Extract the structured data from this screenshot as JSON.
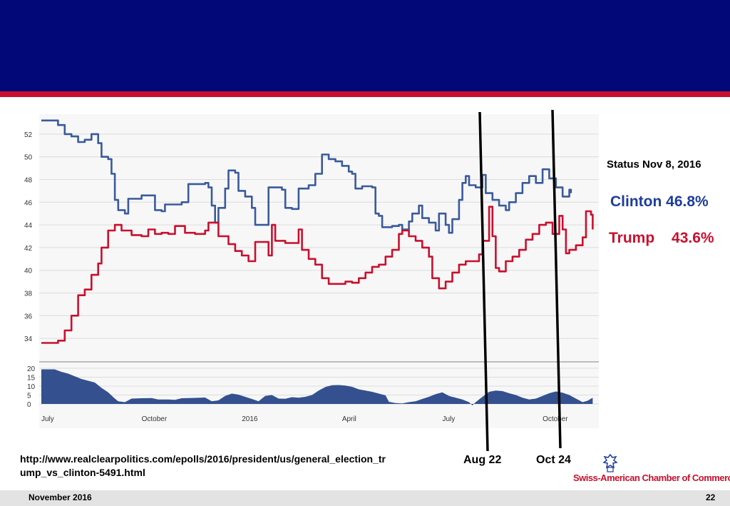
{
  "chart_data": {
    "type": "line",
    "ylim": [
      33,
      53
    ],
    "yticks": [
      34,
      36,
      38,
      40,
      42,
      44,
      46,
      48,
      50,
      52
    ],
    "spread_ylim": [
      0,
      20
    ],
    "spread_yticks": [
      0,
      5,
      10,
      15,
      20
    ],
    "xrange": [
      0,
      16.3
    ],
    "xticks": [
      {
        "x": 0,
        "label": "July"
      },
      {
        "x": 3.0,
        "label": "October"
      },
      {
        "x": 6.0,
        "label": "2016"
      },
      {
        "x": 9.0,
        "label": "April"
      },
      {
        "x": 12.0,
        "label": "July"
      },
      {
        "x": 15.0,
        "label": "October"
      }
    ],
    "series": [
      {
        "name": "Clinton",
        "color": "#3a5a9c",
        "values": [
          [
            0,
            53.2
          ],
          [
            0.4,
            53.2
          ],
          [
            0.5,
            52.8
          ],
          [
            0.7,
            52
          ],
          [
            0.9,
            51.8
          ],
          [
            1.1,
            51.3
          ],
          [
            1.3,
            51.5
          ],
          [
            1.5,
            52
          ],
          [
            1.7,
            51.2
          ],
          [
            1.8,
            50
          ],
          [
            2.0,
            49.8
          ],
          [
            2.1,
            48.5
          ],
          [
            2.2,
            46.2
          ],
          [
            2.3,
            45.3
          ],
          [
            2.5,
            45
          ],
          [
            2.6,
            46.3
          ],
          [
            2.9,
            46.3
          ],
          [
            3.0,
            46.6
          ],
          [
            3.3,
            46.6
          ],
          [
            3.4,
            45.3
          ],
          [
            3.6,
            45.2
          ],
          [
            3.7,
            45.8
          ],
          [
            4.1,
            45.8
          ],
          [
            4.2,
            46
          ],
          [
            4.4,
            47.6
          ],
          [
            4.9,
            47.7
          ],
          [
            5.0,
            47.3
          ],
          [
            5.1,
            45.7
          ],
          [
            5.2,
            44.2
          ],
          [
            5.3,
            45.5
          ],
          [
            5.5,
            47.2
          ],
          [
            5.6,
            48.8
          ],
          [
            5.8,
            48.6
          ],
          [
            5.9,
            47
          ],
          [
            6.1,
            46.5
          ],
          [
            6.3,
            45.5
          ],
          [
            6.4,
            44
          ],
          [
            6.7,
            44
          ],
          [
            6.8,
            47.3
          ],
          [
            7.2,
            47.1
          ],
          [
            7.3,
            45.5
          ],
          [
            7.5,
            45.4
          ],
          [
            7.6,
            45.4
          ],
          [
            7.7,
            47.2
          ],
          [
            7.9,
            47.2
          ],
          [
            8.0,
            47.5
          ],
          [
            8.2,
            48.5
          ],
          [
            8.4,
            50.2
          ],
          [
            8.6,
            49.8
          ],
          [
            8.8,
            49.6
          ],
          [
            9.0,
            49.2
          ],
          [
            9.2,
            48.7
          ],
          [
            9.3,
            48.5
          ],
          [
            9.4,
            47.2
          ],
          [
            9.6,
            47.4
          ],
          [
            9.9,
            47.3
          ],
          [
            10.0,
            45
          ],
          [
            10.1,
            44.8
          ],
          [
            10.2,
            43.8
          ],
          [
            10.5,
            43.9
          ],
          [
            10.7,
            44
          ],
          [
            10.8,
            43.6
          ],
          [
            11.0,
            44.3
          ],
          [
            11.1,
            45
          ],
          [
            11.3,
            45.7
          ],
          [
            11.4,
            44.6
          ],
          [
            11.6,
            44.2
          ],
          [
            11.8,
            43.5
          ],
          [
            11.9,
            45
          ],
          [
            12.1,
            44
          ],
          [
            12.2,
            43.3
          ],
          [
            12.3,
            44.5
          ],
          [
            12.5,
            46.2
          ],
          [
            12.6,
            47.7
          ],
          [
            12.7,
            48.3
          ],
          [
            12.8,
            47.5
          ],
          [
            13.0,
            47.3
          ],
          [
            13.2,
            48.4
          ],
          [
            13.3,
            46.8
          ],
          [
            13.5,
            46.2
          ],
          [
            13.7,
            45.7
          ],
          [
            13.9,
            45.3
          ],
          [
            14.0,
            46
          ],
          [
            14.2,
            46.8
          ],
          [
            14.4,
            47.7
          ],
          [
            14.6,
            48.3
          ],
          [
            14.8,
            47.7
          ],
          [
            15.0,
            48.9
          ],
          [
            15.2,
            48.1
          ],
          [
            15.4,
            47.3
          ],
          [
            15.6,
            46.5
          ],
          [
            15.8,
            47.1
          ],
          [
            15.85,
            46.8
          ]
        ]
      },
      {
        "name": "Trump",
        "color": "#c8102e",
        "values": [
          [
            0,
            33.6
          ],
          [
            0.4,
            33.6
          ],
          [
            0.5,
            33.8
          ],
          [
            0.7,
            34.7
          ],
          [
            0.9,
            36
          ],
          [
            1.1,
            37.8
          ],
          [
            1.3,
            38.3
          ],
          [
            1.5,
            39.6
          ],
          [
            1.7,
            40.6
          ],
          [
            1.8,
            42
          ],
          [
            2.0,
            43.5
          ],
          [
            2.2,
            44
          ],
          [
            2.4,
            43.5
          ],
          [
            2.7,
            43.1
          ],
          [
            3.0,
            43
          ],
          [
            3.2,
            43.6
          ],
          [
            3.4,
            43.2
          ],
          [
            3.6,
            43.3
          ],
          [
            3.8,
            43.2
          ],
          [
            4.0,
            43.9
          ],
          [
            4.3,
            43.3
          ],
          [
            4.6,
            43.2
          ],
          [
            4.9,
            43.5
          ],
          [
            5.0,
            44.2
          ],
          [
            5.3,
            43
          ],
          [
            5.6,
            42.3
          ],
          [
            5.8,
            41.7
          ],
          [
            6.0,
            41.3
          ],
          [
            6.2,
            40.8
          ],
          [
            6.4,
            42.5
          ],
          [
            6.6,
            42.5
          ],
          [
            6.8,
            41.3
          ],
          [
            6.9,
            44
          ],
          [
            7.0,
            42.6
          ],
          [
            7.3,
            42.4
          ],
          [
            7.6,
            42.4
          ],
          [
            7.7,
            43.6
          ],
          [
            7.8,
            41.8
          ],
          [
            8.0,
            41
          ],
          [
            8.2,
            40.5
          ],
          [
            8.4,
            39.3
          ],
          [
            8.6,
            38.8
          ],
          [
            8.9,
            38.8
          ],
          [
            9.1,
            39
          ],
          [
            9.3,
            38.9
          ],
          [
            9.5,
            39.3
          ],
          [
            9.7,
            39.8
          ],
          [
            9.9,
            40.3
          ],
          [
            10.1,
            40.5
          ],
          [
            10.3,
            41.2
          ],
          [
            10.5,
            41.8
          ],
          [
            10.7,
            43.2
          ],
          [
            10.8,
            43.5
          ],
          [
            11.0,
            43
          ],
          [
            11.2,
            42.6
          ],
          [
            11.4,
            42
          ],
          [
            11.6,
            41.2
          ],
          [
            11.7,
            39.3
          ],
          [
            11.9,
            38.4
          ],
          [
            12.1,
            39
          ],
          [
            12.3,
            39.8
          ],
          [
            12.5,
            40.5
          ],
          [
            12.7,
            40.8
          ],
          [
            12.9,
            40.8
          ],
          [
            13.1,
            41.4
          ],
          [
            13.2,
            42.6
          ],
          [
            13.4,
            45.6
          ],
          [
            13.5,
            43
          ],
          [
            13.6,
            40.2
          ],
          [
            13.7,
            39.9
          ],
          [
            13.9,
            40.8
          ],
          [
            14.1,
            41.2
          ],
          [
            14.3,
            41.8
          ],
          [
            14.5,
            42.7
          ],
          [
            14.7,
            43.2
          ],
          [
            14.9,
            44
          ],
          [
            15.1,
            44.2
          ],
          [
            15.3,
            43.2
          ],
          [
            15.5,
            44.8
          ],
          [
            15.6,
            43.6
          ],
          [
            15.7,
            41.5
          ],
          [
            15.8,
            41.8
          ],
          [
            16.0,
            42.2
          ],
          [
            16.2,
            42.9
          ],
          [
            16.3,
            45.2
          ],
          [
            16.45,
            44.9
          ],
          [
            16.5,
            43.6
          ]
        ]
      }
    ],
    "spread": [
      [
        0,
        19.4
      ],
      [
        0.4,
        19.4
      ],
      [
        0.6,
        18
      ],
      [
        0.8,
        17
      ],
      [
        1.0,
        15.5
      ],
      [
        1.2,
        14
      ],
      [
        1.4,
        13
      ],
      [
        1.6,
        12
      ],
      [
        1.8,
        9
      ],
      [
        2.0,
        6.5
      ],
      [
        2.2,
        3
      ],
      [
        2.3,
        1.5
      ],
      [
        2.5,
        1
      ],
      [
        2.7,
        3
      ],
      [
        3.0,
        3.2
      ],
      [
        3.3,
        3.3
      ],
      [
        3.5,
        2.5
      ],
      [
        3.8,
        2.5
      ],
      [
        4.0,
        2.3
      ],
      [
        4.2,
        3.2
      ],
      [
        4.6,
        3.4
      ],
      [
        4.9,
        3.6
      ],
      [
        5.1,
        1.5
      ],
      [
        5.3,
        2
      ],
      [
        5.5,
        4.5
      ],
      [
        5.7,
        5.8
      ],
      [
        5.9,
        5.2
      ],
      [
        6.1,
        4
      ],
      [
        6.3,
        2.8
      ],
      [
        6.5,
        1.5
      ],
      [
        6.7,
        4.5
      ],
      [
        6.9,
        5
      ],
      [
        7.1,
        3
      ],
      [
        7.3,
        2.9
      ],
      [
        7.5,
        3.8
      ],
      [
        7.7,
        3.5
      ],
      [
        7.9,
        4
      ],
      [
        8.1,
        5
      ],
      [
        8.3,
        7.5
      ],
      [
        8.5,
        9.5
      ],
      [
        8.7,
        10.5
      ],
      [
        8.9,
        10.6
      ],
      [
        9.1,
        10.3
      ],
      [
        9.3,
        9.6
      ],
      [
        9.5,
        8.2
      ],
      [
        9.7,
        7.5
      ],
      [
        9.9,
        6.8
      ],
      [
        10.1,
        5.8
      ],
      [
        10.3,
        4.8
      ],
      [
        10.4,
        1.2
      ],
      [
        10.6,
        0.5
      ],
      [
        10.8,
        0.3
      ],
      [
        11.0,
        1
      ],
      [
        11.2,
        1.5
      ],
      [
        11.4,
        2.8
      ],
      [
        11.6,
        4
      ],
      [
        11.8,
        5.5
      ],
      [
        12.0,
        6.5
      ],
      [
        12.2,
        4.5
      ],
      [
        12.4,
        3.5
      ],
      [
        12.6,
        2.5
      ],
      [
        12.8,
        1
      ],
      [
        12.9,
        -0.8
      ],
      [
        13.0,
        1
      ],
      [
        13.2,
        4
      ],
      [
        13.4,
        6.8
      ],
      [
        13.6,
        7.5
      ],
      [
        13.8,
        7.2
      ],
      [
        14.0,
        6
      ],
      [
        14.2,
        5
      ],
      [
        14.4,
        3.5
      ],
      [
        14.6,
        2.5
      ],
      [
        14.8,
        3
      ],
      [
        15.0,
        4.5
      ],
      [
        15.2,
        6
      ],
      [
        15.4,
        7
      ],
      [
        15.6,
        6.3
      ],
      [
        15.8,
        5
      ],
      [
        16.0,
        3
      ],
      [
        16.2,
        1
      ],
      [
        16.35,
        1.8
      ],
      [
        16.5,
        3.5
      ]
    ]
  },
  "status_title": "Status Nov 8, 2016",
  "clinton_name": "Clinton",
  "clinton_value": "46.8%",
  "trump_name": "Trump",
  "trump_value": "43.6%",
  "source_url": "http://www.realclearpolitics.com/epolls/2016/president/us/general_election_trump_vs_clinton-5491.html",
  "marker_aug": "Aug 22",
  "marker_oct": "Oct 24",
  "logo_text": "Swiss-American Chamber of Commerce",
  "footer_date": "November 2016",
  "footer_page": "22",
  "colors": {
    "banner": "#020878",
    "accent_red": "#c8102e",
    "clinton_blue": "#3a5a9c",
    "spread_fill": "#34508f"
  }
}
